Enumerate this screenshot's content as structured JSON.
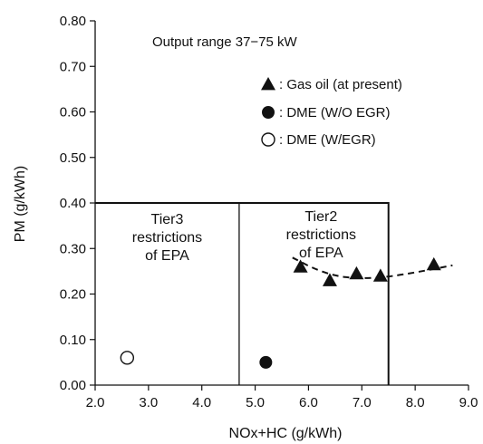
{
  "chart_data": {
    "type": "scatter",
    "xlabel": "NOx+HC (g/kWh)",
    "ylabel": "PM (g/kWh)",
    "xlim": [
      2.0,
      9.0
    ],
    "ylim": [
      0.0,
      0.8
    ],
    "x_ticks": [
      "2.0",
      "3.0",
      "4.0",
      "5.0",
      "6.0",
      "7.0",
      "8.0",
      "9.0"
    ],
    "y_ticks": [
      "0.00",
      "0.10",
      "0.20",
      "0.30",
      "0.40",
      "0.50",
      "0.60",
      "0.70",
      "0.80"
    ],
    "grid": false,
    "annotation": "Output range 37−75 kW",
    "legend_position": "top-right",
    "legend": [
      {
        "marker": "filled-triangle",
        "label": ": Gas oil (at present)"
      },
      {
        "marker": "filled-circle",
        "label": ": DME (W/O EGR)"
      },
      {
        "marker": "open-circle",
        "label": ": DME (W/EGR)"
      }
    ],
    "series": [
      {
        "name": "Gas oil (at present)",
        "marker": "filled-triangle",
        "points": [
          [
            5.85,
            0.26
          ],
          [
            6.4,
            0.23
          ],
          [
            6.9,
            0.245
          ],
          [
            7.35,
            0.24
          ],
          [
            8.35,
            0.265
          ]
        ]
      },
      {
        "name": "DME (W/O EGR)",
        "marker": "filled-circle",
        "points": [
          [
            5.2,
            0.05
          ]
        ]
      },
      {
        "name": "DME (W/EGR)",
        "marker": "open-circle",
        "points": [
          [
            2.6,
            0.06
          ]
        ]
      }
    ],
    "trend_line": {
      "style": "dashed",
      "points": [
        [
          5.7,
          0.28
        ],
        [
          6.2,
          0.25
        ],
        [
          6.7,
          0.235
        ],
        [
          7.3,
          0.235
        ],
        [
          7.9,
          0.245
        ],
        [
          8.7,
          0.263
        ]
      ]
    },
    "regions": [
      {
        "label_lines": [
          "Tier3",
          "restrictions",
          "of EPA"
        ],
        "x_range": [
          2.0,
          4.7
        ],
        "y_max": 0.4
      },
      {
        "label_lines": [
          "Tier2",
          "restrictions",
          "of EPA"
        ],
        "x_range": [
          4.7,
          7.5
        ],
        "y_max": 0.4
      }
    ]
  }
}
